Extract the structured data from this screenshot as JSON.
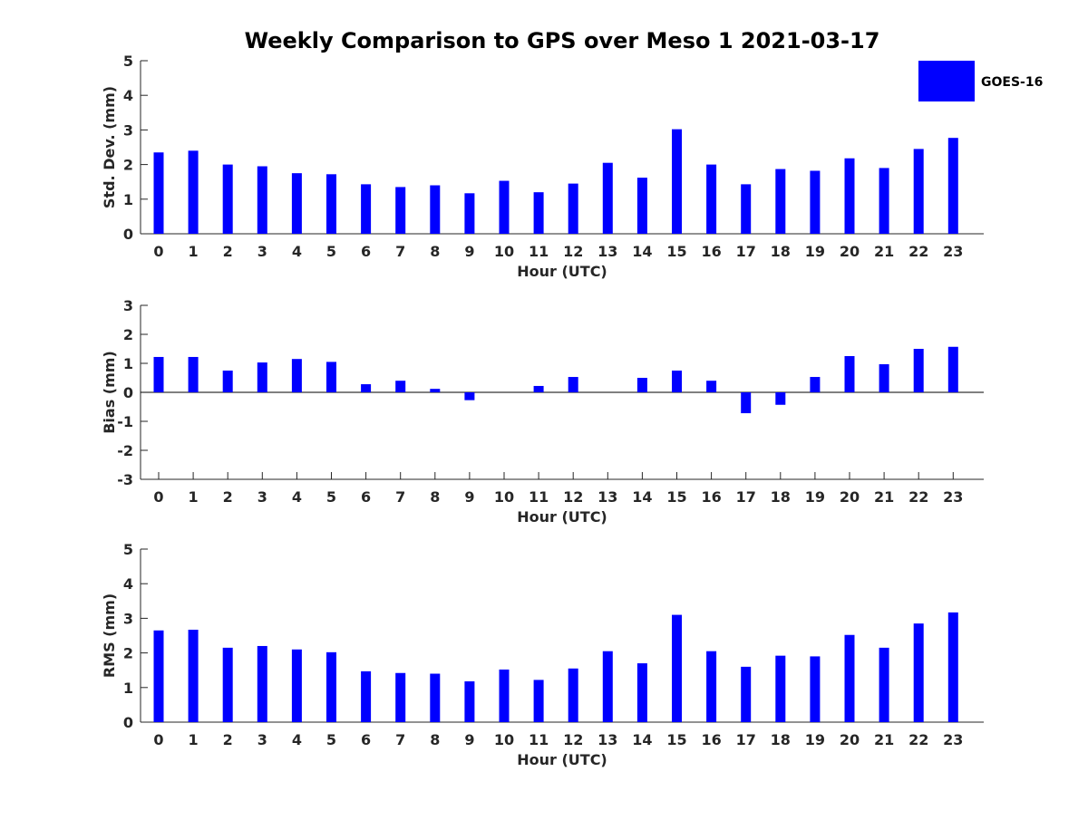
{
  "chart_title": "Weekly Comparison to GPS over Meso 1 2021-03-17",
  "colors": {
    "bar": "#0000ff",
    "axis": "#262626"
  },
  "chart_data": [
    {
      "type": "bar",
      "id": "std",
      "title": "Weekly Comparison to GPS over Meso 1 2021-03-17",
      "xlabel": "Hour (UTC)",
      "ylabel": "Std. Dev. (mm)",
      "ylim": [
        0,
        5
      ],
      "yticks": [
        0,
        1,
        2,
        3,
        4,
        5
      ],
      "categories": [
        "0",
        "1",
        "2",
        "3",
        "4",
        "5",
        "6",
        "7",
        "8",
        "9",
        "10",
        "11",
        "12",
        "13",
        "14",
        "15",
        "16",
        "17",
        "18",
        "19",
        "20",
        "21",
        "22",
        "23"
      ],
      "series": [
        {
          "name": "GOES-16",
          "values": [
            2.35,
            2.4,
            2.0,
            1.95,
            1.75,
            1.72,
            1.43,
            1.35,
            1.4,
            1.17,
            1.53,
            1.2,
            1.45,
            2.05,
            1.62,
            3.02,
            2.0,
            1.43,
            1.87,
            1.82,
            2.18,
            1.9,
            2.45,
            2.77
          ]
        }
      ],
      "legend": {
        "position": "top-right",
        "entries": [
          "GOES-16"
        ]
      }
    },
    {
      "type": "bar",
      "id": "bias",
      "xlabel": "Hour (UTC)",
      "ylabel": "Bias (mm)",
      "ylim": [
        -3,
        3
      ],
      "yticks": [
        3,
        2,
        1,
        0,
        -1,
        -2,
        -3
      ],
      "categories": [
        "0",
        "1",
        "2",
        "3",
        "4",
        "5",
        "6",
        "7",
        "8",
        "9",
        "10",
        "11",
        "12",
        "13",
        "14",
        "15",
        "16",
        "17",
        "18",
        "19",
        "20",
        "21",
        "22",
        "23"
      ],
      "series": [
        {
          "name": "GOES-16",
          "values": [
            1.22,
            1.22,
            0.75,
            1.03,
            1.15,
            1.05,
            0.28,
            0.4,
            0.12,
            -0.27,
            0.0,
            0.22,
            0.53,
            0.0,
            0.5,
            0.75,
            0.4,
            -0.72,
            -0.43,
            0.53,
            1.25,
            0.97,
            1.5,
            1.57
          ]
        }
      ]
    },
    {
      "type": "bar",
      "id": "rms",
      "xlabel": "Hour (UTC)",
      "ylabel": "RMS (mm)",
      "ylim": [
        0,
        5
      ],
      "yticks": [
        0,
        1,
        2,
        3,
        4,
        5
      ],
      "categories": [
        "0",
        "1",
        "2",
        "3",
        "4",
        "5",
        "6",
        "7",
        "8",
        "9",
        "10",
        "11",
        "12",
        "13",
        "14",
        "15",
        "16",
        "17",
        "18",
        "19",
        "20",
        "21",
        "22",
        "23"
      ],
      "series": [
        {
          "name": "GOES-16",
          "values": [
            2.65,
            2.67,
            2.15,
            2.2,
            2.1,
            2.02,
            1.47,
            1.42,
            1.4,
            1.18,
            1.52,
            1.22,
            1.55,
            2.05,
            1.7,
            3.1,
            2.05,
            1.6,
            1.92,
            1.9,
            2.52,
            2.15,
            2.85,
            3.17
          ]
        }
      ]
    }
  ]
}
